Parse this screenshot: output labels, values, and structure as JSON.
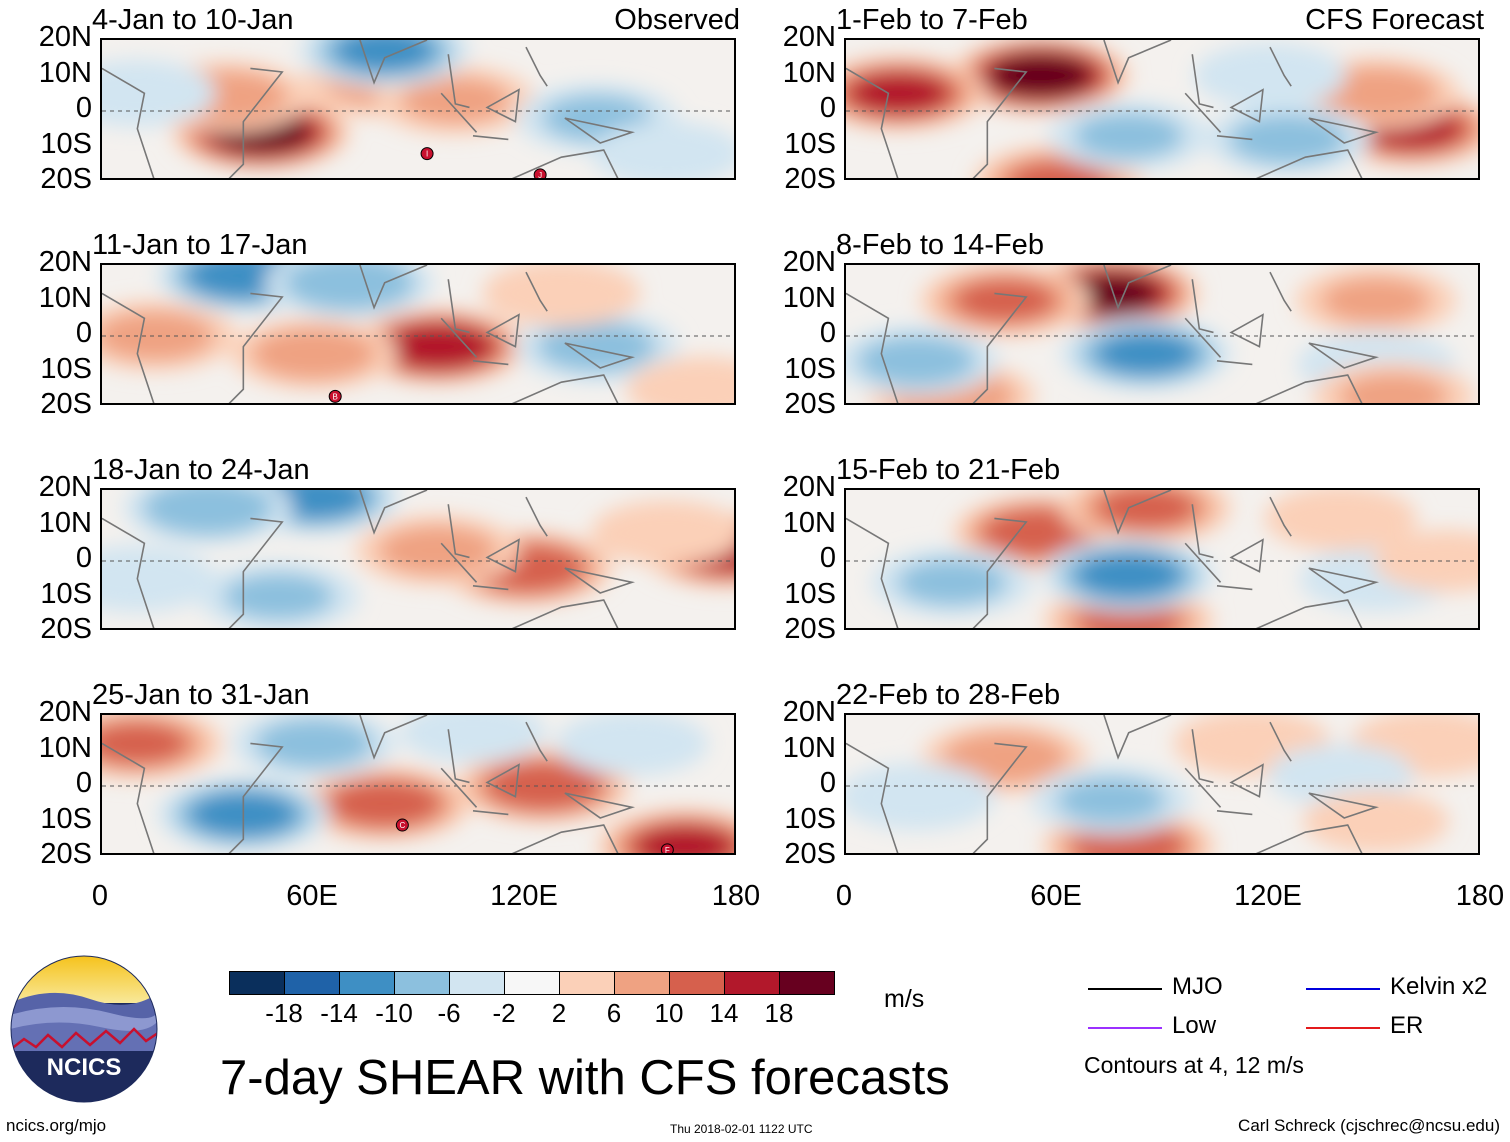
{
  "chart_data": {
    "type": "heatmap",
    "title": "7-day SHEAR with CFS forecasts",
    "units": "m/s",
    "variable": "SHEAR",
    "y_ticks": [
      "20N",
      "10N",
      "0",
      "10S",
      "20S"
    ],
    "x_ticks": [
      "0",
      "60E",
      "120E",
      "180"
    ],
    "lat_range": [
      -20,
      20
    ],
    "lon_range": [
      0,
      180
    ],
    "colorbar": {
      "levels": [
        "-18",
        "-14",
        "-10",
        "-6",
        "-2",
        "2",
        "6",
        "10",
        "14",
        "18"
      ],
      "colors": [
        "#0a2f5c",
        "#1f62a8",
        "#3e8fc4",
        "#8cc0de",
        "#d2e5f1",
        "#f7f7f7",
        "#fbd0b8",
        "#efa282",
        "#d6604d",
        "#b2182b",
        "#67001f"
      ]
    },
    "legend": [
      {
        "label": "MJO",
        "color": "#000000"
      },
      {
        "label": "Kelvin x2",
        "color": "#0000dd"
      },
      {
        "label": "Low",
        "color": "#9b30ff"
      },
      {
        "label": "ER",
        "color": "#e31a1c"
      }
    ],
    "contour_note": "Contours at 4, 12 m/s",
    "panels": [
      {
        "period": "4-Jan to 10-Jan",
        "tag": "Observed",
        "col": 0,
        "row": 0,
        "anomalies": [
          {
            "lon": 45,
            "lat": -6,
            "value": 19
          },
          {
            "lon": 35,
            "lat": 4,
            "value": 8
          },
          {
            "lon": 80,
            "lat": 8,
            "value": 7
          },
          {
            "lon": 100,
            "lat": 3,
            "value": 6
          },
          {
            "lon": 80,
            "lat": 17,
            "value": -10
          },
          {
            "lon": 140,
            "lat": -2,
            "value": -6
          },
          {
            "lon": 10,
            "lat": 5,
            "value": -5
          },
          {
            "lon": 160,
            "lat": -12,
            "value": -4
          }
        ],
        "cyclones": [
          {
            "lon": 92,
            "lat": -12,
            "id": "I"
          },
          {
            "lon": 124,
            "lat": -18,
            "id": "J"
          }
        ]
      },
      {
        "period": "1-Feb to 7-Feb",
        "tag": "CFS Forecast",
        "col": 1,
        "row": 0,
        "anomalies": [
          {
            "lon": 55,
            "lat": 10,
            "value": 20
          },
          {
            "lon": 15,
            "lat": 5,
            "value": 14
          },
          {
            "lon": 160,
            "lat": -5,
            "value": 14
          },
          {
            "lon": 150,
            "lat": 5,
            "value": 8
          },
          {
            "lon": 60,
            "lat": -20,
            "value": 10
          },
          {
            "lon": 80,
            "lat": -7,
            "value": -6
          },
          {
            "lon": 125,
            "lat": -8,
            "value": -7
          },
          {
            "lon": 120,
            "lat": 10,
            "value": -4
          }
        ],
        "cyclones": []
      },
      {
        "period": "11-Jan to 17-Jan",
        "tag": "",
        "col": 0,
        "row": 1,
        "anomalies": [
          {
            "lon": 95,
            "lat": -3,
            "value": 17
          },
          {
            "lon": 60,
            "lat": -5,
            "value": 8
          },
          {
            "lon": 15,
            "lat": 0,
            "value": 7
          },
          {
            "lon": 40,
            "lat": 17,
            "value": -12
          },
          {
            "lon": 70,
            "lat": 15,
            "value": -9
          },
          {
            "lon": 140,
            "lat": -3,
            "value": -7
          },
          {
            "lon": 130,
            "lat": 12,
            "value": 5
          },
          {
            "lon": 170,
            "lat": -15,
            "value": 4
          }
        ],
        "cyclones": [
          {
            "lon": 66,
            "lat": -17,
            "id": "B"
          }
        ]
      },
      {
        "period": "8-Feb to 14-Feb",
        "tag": "",
        "col": 1,
        "row": 1,
        "anomalies": [
          {
            "lon": 75,
            "lat": 12,
            "value": 18
          },
          {
            "lon": 45,
            "lat": 10,
            "value": 10
          },
          {
            "lon": 150,
            "lat": 10,
            "value": 6
          },
          {
            "lon": 30,
            "lat": -17,
            "value": 8
          },
          {
            "lon": 85,
            "lat": -5,
            "value": -10
          },
          {
            "lon": 20,
            "lat": -7,
            "value": -7
          },
          {
            "lon": 150,
            "lat": -8,
            "value": -5
          },
          {
            "lon": 155,
            "lat": -17,
            "value": 6
          }
        ],
        "cyclones": []
      },
      {
        "period": "18-Jan to 24-Jan",
        "tag": "",
        "col": 0,
        "row": 2,
        "anomalies": [
          {
            "lon": 120,
            "lat": -2,
            "value": 13
          },
          {
            "lon": 95,
            "lat": 3,
            "value": 7
          },
          {
            "lon": 177,
            "lat": 3,
            "value": 15
          },
          {
            "lon": 60,
            "lat": 18,
            "value": -11
          },
          {
            "lon": 30,
            "lat": 15,
            "value": -9
          },
          {
            "lon": 50,
            "lat": -10,
            "value": -6
          },
          {
            "lon": 10,
            "lat": -5,
            "value": -5
          },
          {
            "lon": 160,
            "lat": 8,
            "value": 4
          }
        ],
        "cyclones": []
      },
      {
        "period": "15-Feb to 21-Feb",
        "tag": "",
        "col": 1,
        "row": 2,
        "anomalies": [
          {
            "lon": 55,
            "lat": 8,
            "value": 13
          },
          {
            "lon": 85,
            "lat": 15,
            "value": 10
          },
          {
            "lon": 80,
            "lat": -17,
            "value": 10
          },
          {
            "lon": 80,
            "lat": -4,
            "value": -11
          },
          {
            "lon": 30,
            "lat": -6,
            "value": -6
          },
          {
            "lon": 150,
            "lat": -5,
            "value": -4
          },
          {
            "lon": 140,
            "lat": 12,
            "value": 4
          },
          {
            "lon": 170,
            "lat": 0,
            "value": 3
          }
        ],
        "cyclones": []
      },
      {
        "period": "25-Jan to 31-Jan",
        "tag": "",
        "col": 0,
        "row": 3,
        "anomalies": [
          {
            "lon": 125,
            "lat": 0,
            "value": 13
          },
          {
            "lon": 80,
            "lat": -5,
            "value": 12
          },
          {
            "lon": 10,
            "lat": 12,
            "value": 10
          },
          {
            "lon": 165,
            "lat": -17,
            "value": 14
          },
          {
            "lon": 40,
            "lat": -8,
            "value": -11
          },
          {
            "lon": 60,
            "lat": 12,
            "value": -7
          },
          {
            "lon": 150,
            "lat": 12,
            "value": -4
          },
          {
            "lon": 105,
            "lat": 15,
            "value": -3
          }
        ],
        "cyclones": [
          {
            "lon": 85,
            "lat": -11,
            "id": "C"
          },
          {
            "lon": 160,
            "lat": -18,
            "id": "F"
          }
        ]
      },
      {
        "period": "22-Feb to 28-Feb",
        "tag": "",
        "col": 1,
        "row": 3,
        "anomalies": [
          {
            "lon": 45,
            "lat": 8,
            "value": 8
          },
          {
            "lon": 80,
            "lat": -17,
            "value": 12
          },
          {
            "lon": 115,
            "lat": 12,
            "value": 5
          },
          {
            "lon": 165,
            "lat": 12,
            "value": 5
          },
          {
            "lon": 75,
            "lat": -4,
            "value": -6
          },
          {
            "lon": 20,
            "lat": -3,
            "value": -5
          },
          {
            "lon": 140,
            "lat": 3,
            "value": -3
          },
          {
            "lon": 150,
            "lat": -10,
            "value": 3
          }
        ],
        "cyclones": []
      }
    ]
  },
  "page": {
    "logo_text": "NCICS",
    "url": "ncics.org/mjo",
    "timestamp": "Thu 2018-02-01 1122 UTC",
    "author": "Carl Schreck (cjschrec@ncsu.edu)"
  }
}
